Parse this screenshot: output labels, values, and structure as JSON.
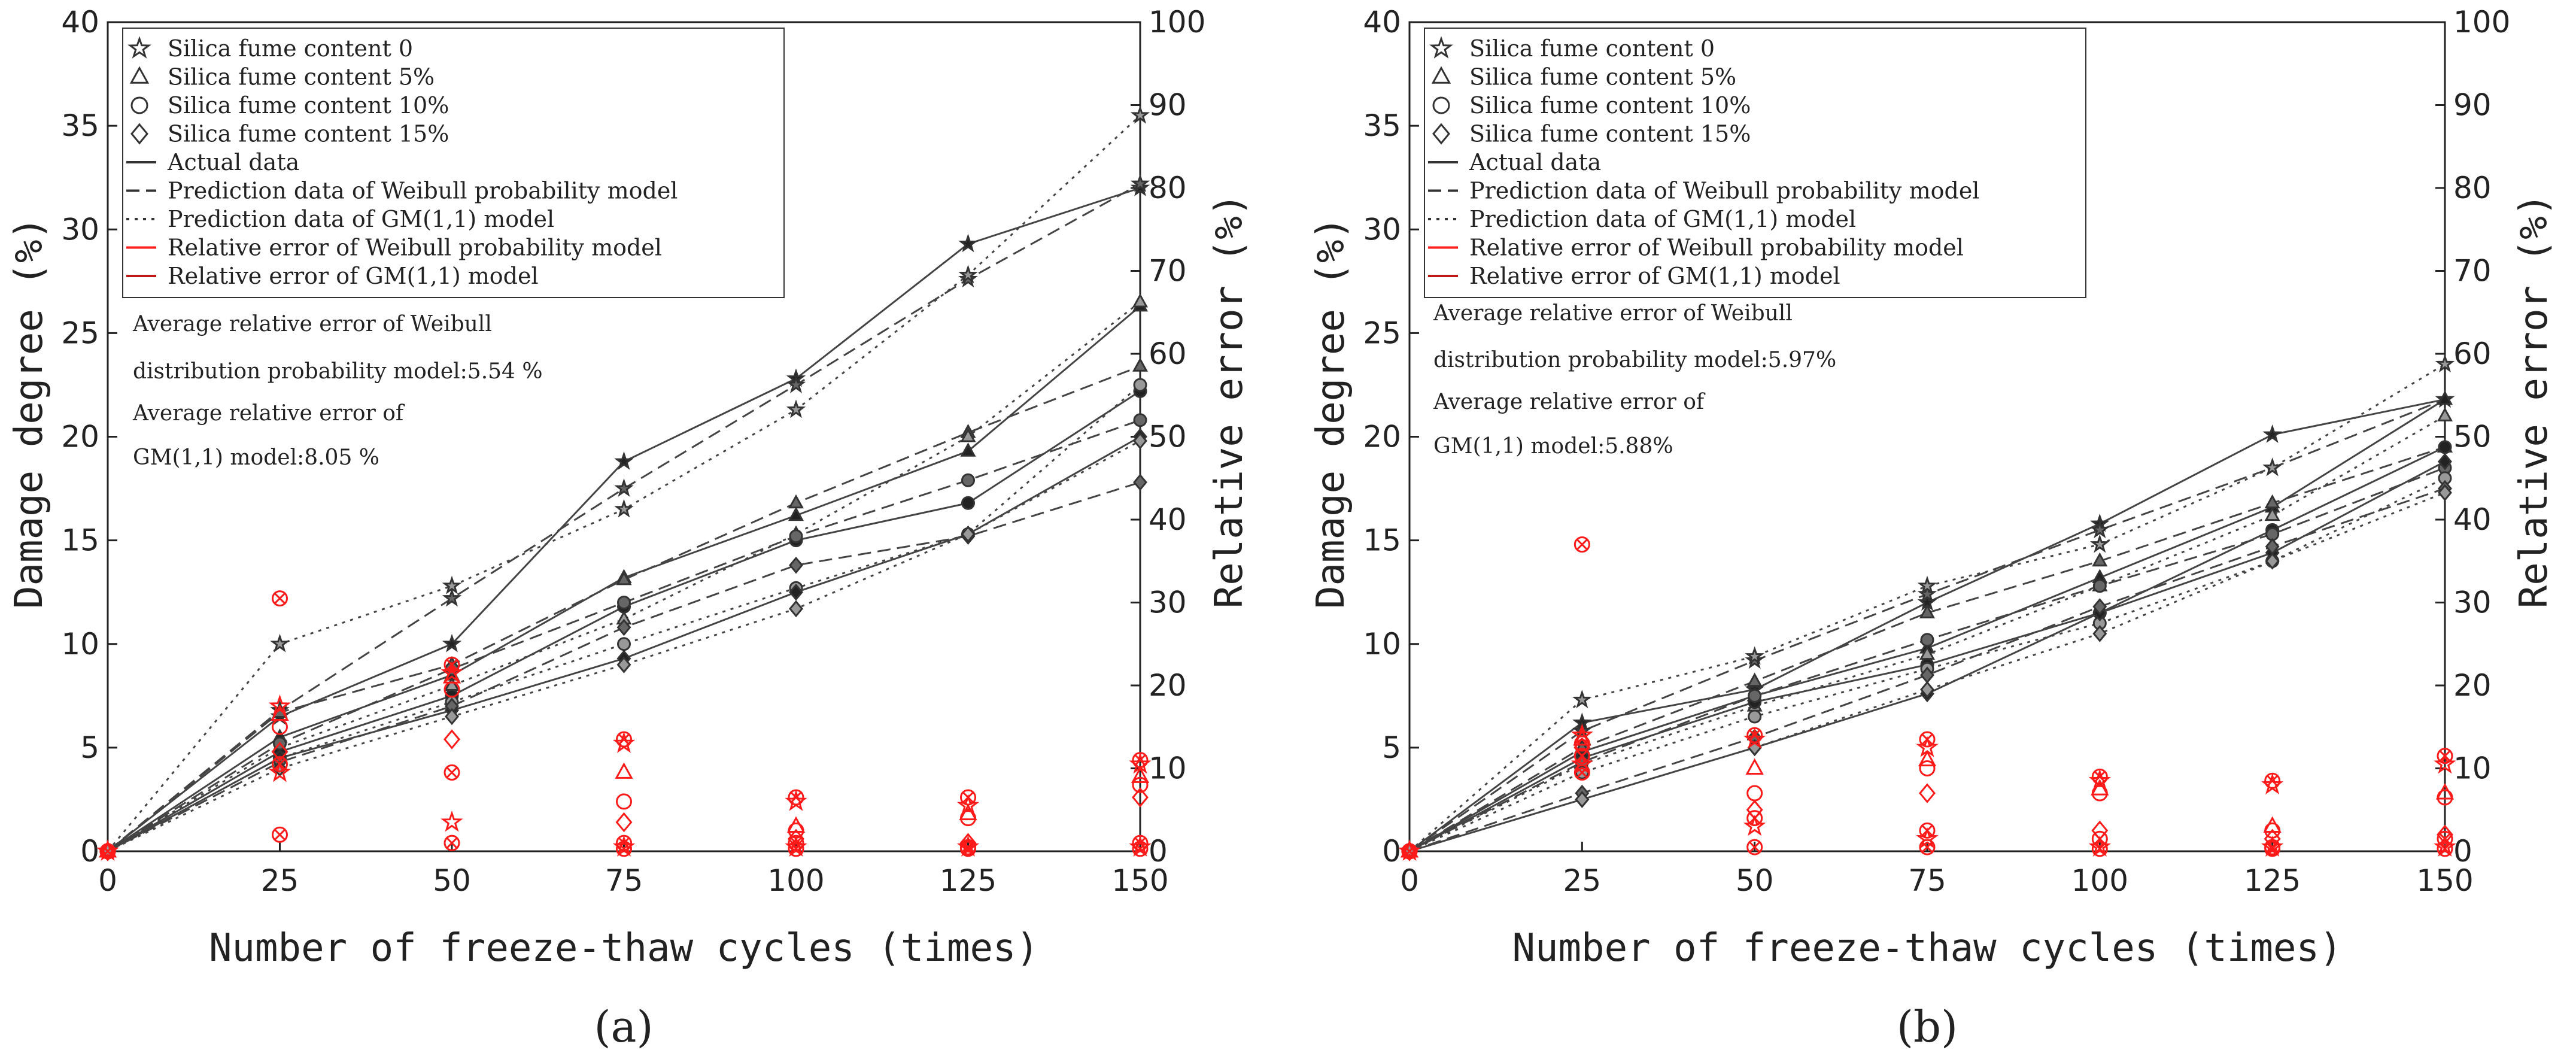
{
  "chart_data": [
    {
      "type": "line",
      "panel_label": "(a)",
      "xlabel": "Number of freeze-thaw cycles (times)",
      "ylabel": "Damage degree (%)",
      "y2label": "Relative error (%)",
      "x": [
        0,
        25,
        50,
        75,
        100,
        125,
        150
      ],
      "xticks": [
        "0",
        "25",
        "50",
        "75",
        "100",
        "125",
        "150"
      ],
      "ylim": [
        0,
        40
      ],
      "yticks": [
        "0",
        "5",
        "10",
        "15",
        "20",
        "25",
        "30",
        "35",
        "40"
      ],
      "y2lim": [
        0,
        100
      ],
      "y2ticks": [
        "0",
        "10",
        "20",
        "30",
        "40",
        "50",
        "60",
        "70",
        "80",
        "90",
        "100"
      ],
      "legend": [
        {
          "label": "Silica fume content 0",
          "marker": "star"
        },
        {
          "label": "Silica fume content 5%",
          "marker": "triangle"
        },
        {
          "label": "Silica fume content 10%",
          "marker": "circle"
        },
        {
          "label": "Silica fume content 15%",
          "marker": "diamond"
        },
        {
          "label": "Actual data",
          "line": "solid",
          "color": "#333333"
        },
        {
          "label": "Prediction data of Weibull probability model",
          "line": "dashed",
          "color": "#333333"
        },
        {
          "label": "Prediction data of GM(1,1) model",
          "line": "dotted",
          "color": "#333333"
        },
        {
          "label": "Relative error of Weibull probability model",
          "line": "solid",
          "color": "#ff2020"
        },
        {
          "label": "Relative error of GM(1,1) model",
          "line": "solid",
          "color": "#c01818"
        }
      ],
      "notes": [
        "Average relative error of Weibull",
        "distribution probability model:5.54 %",
        "Average relative error of",
        "GM(1,1) model:8.05 %"
      ],
      "series": [
        {
          "name": "Silica fume content 0 - Actual",
          "marker": "star",
          "kind": "actual",
          "values": [
            0,
            6.5,
            10.0,
            18.8,
            22.8,
            29.3,
            32.0
          ]
        },
        {
          "name": "Silica fume content 0 - Weibull",
          "marker": "star",
          "kind": "weibull",
          "values": [
            0,
            6.8,
            12.2,
            17.5,
            22.5,
            27.6,
            32.2
          ]
        },
        {
          "name": "Silica fume content 0 - GM(1,1)",
          "marker": "star",
          "kind": "gm",
          "values": [
            0,
            10.0,
            12.8,
            16.5,
            21.3,
            27.8,
            35.5
          ]
        },
        {
          "name": "Silica fume content 5% - Actual",
          "marker": "triangle",
          "kind": "actual",
          "values": [
            0,
            5.5,
            8.5,
            13.2,
            16.2,
            19.3,
            26.3
          ]
        },
        {
          "name": "Silica fume content 5% - Weibull",
          "marker": "triangle",
          "kind": "weibull",
          "values": [
            0,
            6.7,
            9.0,
            13.1,
            16.8,
            20.2,
            23.4
          ]
        },
        {
          "name": "Silica fume content 5% - GM(1,1)",
          "marker": "triangle",
          "kind": "gm",
          "values": [
            0,
            5.0,
            8.0,
            11.2,
            15.3,
            20.0,
            26.5
          ]
        },
        {
          "name": "Silica fume content 10% - Actual",
          "marker": "circle",
          "kind": "actual",
          "values": [
            0,
            4.8,
            7.5,
            11.8,
            15.0,
            16.8,
            22.2
          ]
        },
        {
          "name": "Silica fume content 10% - Weibull",
          "marker": "circle",
          "kind": "weibull",
          "values": [
            0,
            5.2,
            8.8,
            12.0,
            15.2,
            17.9,
            20.8
          ]
        },
        {
          "name": "Silica fume content 10% - GM(1,1)",
          "marker": "circle",
          "kind": "gm",
          "values": [
            0,
            4.5,
            7.2,
            10.0,
            12.7,
            15.3,
            22.5
          ]
        },
        {
          "name": "Silica fume content 15% - Actual",
          "marker": "diamond",
          "kind": "actual",
          "values": [
            0,
            4.5,
            6.8,
            9.3,
            12.5,
            15.3,
            20.0
          ]
        },
        {
          "name": "Silica fume content 15% - Weibull",
          "marker": "diamond",
          "kind": "weibull",
          "values": [
            0,
            4.3,
            7.0,
            10.8,
            13.8,
            15.2,
            17.8
          ]
        },
        {
          "name": "Silica fume content 15% - GM(1,1)",
          "marker": "diamond",
          "kind": "gm",
          "values": [
            0,
            4.0,
            6.5,
            9.0,
            11.7,
            15.3,
            19.8
          ]
        }
      ],
      "relative_error_points": [
        {
          "x": 0,
          "values": [
            0,
            0,
            0,
            0,
            0,
            0,
            0,
            0
          ]
        },
        {
          "x": 25,
          "values": [
            30.5,
            17.5,
            16.5,
            15.0,
            12.0,
            10.5,
            9.5,
            2.0
          ]
        },
        {
          "x": 50,
          "values": [
            22.5,
            21.5,
            21.0,
            19.5,
            13.5,
            9.5,
            3.5,
            1.0
          ]
        },
        {
          "x": 75,
          "values": [
            13.5,
            13.0,
            9.5,
            6.0,
            3.5,
            1.0,
            0.5,
            0.3
          ]
        },
        {
          "x": 100,
          "values": [
            6.5,
            6.0,
            3.0,
            2.5,
            1.5,
            1.0,
            0.5,
            0.3
          ]
        },
        {
          "x": 125,
          "values": [
            6.5,
            5.5,
            4.5,
            4.0,
            1.0,
            0.5,
            0.5,
            0.3
          ]
        },
        {
          "x": 150,
          "values": [
            11.0,
            10.5,
            9.0,
            8.0,
            6.5,
            1.0,
            0.5,
            0.3
          ]
        }
      ]
    },
    {
      "type": "line",
      "panel_label": "(b)",
      "xlabel": "Number of freeze-thaw cycles (times)",
      "ylabel": "Damage degree (%)",
      "y2label": "Relative error (%)",
      "x": [
        0,
        25,
        50,
        75,
        100,
        125,
        150
      ],
      "xticks": [
        "0",
        "25",
        "50",
        "75",
        "100",
        "125",
        "150"
      ],
      "ylim": [
        0,
        40
      ],
      "yticks": [
        "0",
        "5",
        "10",
        "15",
        "20",
        "25",
        "30",
        "35",
        "40"
      ],
      "y2lim": [
        0,
        100
      ],
      "y2ticks": [
        "0",
        "10",
        "20",
        "30",
        "40",
        "50",
        "60",
        "70",
        "80",
        "90",
        "100"
      ],
      "legend": [
        {
          "label": "Silica fume content 0",
          "marker": "star"
        },
        {
          "label": "Silica fume content 5%",
          "marker": "triangle"
        },
        {
          "label": "Silica fume content 10%",
          "marker": "circle"
        },
        {
          "label": "Silica fume content 15%",
          "marker": "diamond"
        },
        {
          "label": "Actual data",
          "line": "solid",
          "color": "#333333"
        },
        {
          "label": "Prediction data of Weibull probability model",
          "line": "dashed",
          "color": "#333333"
        },
        {
          "label": "Prediction data of GM(1,1) model",
          "line": "dotted",
          "color": "#333333"
        },
        {
          "label": "Relative error of Weibull probability model",
          "line": "solid",
          "color": "#ff2020"
        },
        {
          "label": "Relative error of GM(1,1) model",
          "line": "solid",
          "color": "#c01818"
        }
      ],
      "notes": [
        "Average relative error of Weibull",
        "distribution probability model:5.97%",
        "Average relative error of",
        "GM(1,1) model:5.88%"
      ],
      "series": [
        {
          "name": "Silica fume content 0 - Actual",
          "marker": "star",
          "kind": "actual",
          "values": [
            0,
            6.2,
            7.8,
            12.0,
            15.8,
            20.1,
            21.8
          ]
        },
        {
          "name": "Silica fume content 0 - Weibull",
          "marker": "star",
          "kind": "weibull",
          "values": [
            0,
            5.8,
            9.2,
            12.4,
            15.5,
            18.5,
            21.8
          ]
        },
        {
          "name": "Silica fume content 0 - GM(1,1)",
          "marker": "star",
          "kind": "gm",
          "values": [
            0,
            7.3,
            9.4,
            12.8,
            14.8,
            18.5,
            23.5
          ]
        },
        {
          "name": "Silica fume content 5% - Actual",
          "marker": "triangle",
          "kind": "actual",
          "values": [
            0,
            4.8,
            7.5,
            9.8,
            13.2,
            16.6,
            21.8
          ]
        },
        {
          "name": "Silica fume content 5% - Weibull",
          "marker": "triangle",
          "kind": "weibull",
          "values": [
            0,
            5.0,
            8.2,
            11.5,
            14.0,
            16.8,
            19.5
          ]
        },
        {
          "name": "Silica fume content 5% - GM(1,1)",
          "marker": "triangle",
          "kind": "gm",
          "values": [
            0,
            4.2,
            7.0,
            9.5,
            12.8,
            16.2,
            21.0
          ]
        },
        {
          "name": "Silica fume content 10% - Actual",
          "marker": "circle",
          "kind": "actual",
          "values": [
            0,
            4.5,
            7.2,
            9.0,
            11.5,
            15.5,
            19.5
          ]
        },
        {
          "name": "Silica fume content 10% - Weibull",
          "marker": "circle",
          "kind": "weibull",
          "values": [
            0,
            4.3,
            7.5,
            10.2,
            12.8,
            15.3,
            18.5
          ]
        },
        {
          "name": "Silica fume content 10% - GM(1,1)",
          "marker": "circle",
          "kind": "gm",
          "values": [
            0,
            3.8,
            6.5,
            8.8,
            11.0,
            14.0,
            18.0
          ]
        },
        {
          "name": "Silica fume content 15% - Actual",
          "marker": "diamond",
          "kind": "actual",
          "values": [
            0,
            2.5,
            5.0,
            7.6,
            11.5,
            14.4,
            18.8
          ]
        },
        {
          "name": "Silica fume content 15% - Weibull",
          "marker": "diamond",
          "kind": "weibull",
          "values": [
            0,
            2.8,
            5.5,
            8.5,
            11.8,
            14.7,
            17.5
          ]
        },
        {
          "name": "Silica fume content 15% - GM(1,1)",
          "marker": "diamond",
          "kind": "gm",
          "values": [
            0,
            2.5,
            5.0,
            7.8,
            10.5,
            14.0,
            17.3
          ]
        }
      ],
      "relative_error_points": [
        {
          "x": 0,
          "values": [
            0,
            0,
            0,
            0,
            0,
            0,
            0,
            0
          ]
        },
        {
          "x": 25,
          "values": [
            37.0,
            14.0,
            13.5,
            13.0,
            12.5,
            11.5,
            10.5,
            9.5
          ]
        },
        {
          "x": 50,
          "values": [
            14.0,
            13.5,
            10.0,
            7.0,
            5.0,
            4.0,
            3.0,
            0.5
          ]
        },
        {
          "x": 75,
          "values": [
            13.5,
            12.5,
            11.0,
            10.0,
            7.0,
            2.5,
            1.5,
            0.5
          ]
        },
        {
          "x": 100,
          "values": [
            9.0,
            8.5,
            7.5,
            7.0,
            2.5,
            1.5,
            0.5,
            0.3
          ]
        },
        {
          "x": 125,
          "values": [
            8.5,
            8.0,
            3.0,
            2.5,
            1.5,
            0.5,
            0.5,
            0.3
          ]
        },
        {
          "x": 150,
          "values": [
            11.5,
            10.5,
            7.0,
            6.5,
            2.0,
            1.5,
            0.5,
            0.3
          ]
        }
      ]
    }
  ]
}
